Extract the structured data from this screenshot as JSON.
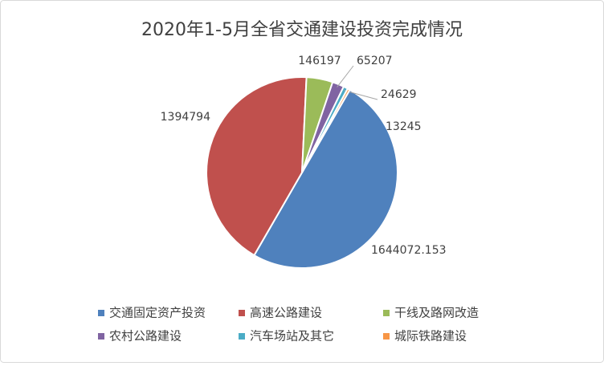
{
  "chart_data": {
    "type": "pie",
    "title": "2020年1-5月全省交通建设投资完成情况",
    "categories": [
      "交通固定资产投资",
      "高速公路建设",
      "干线及路网改造",
      "农村公路建设",
      "汽车场站及其它",
      "城际铁路建设"
    ],
    "values": [
      1644072.153,
      1394794,
      146197,
      65207,
      24629,
      13245
    ],
    "colors": [
      "#4f81bd",
      "#c0504d",
      "#9bbb59",
      "#8064a2",
      "#4bacc6",
      "#f79646"
    ]
  }
}
